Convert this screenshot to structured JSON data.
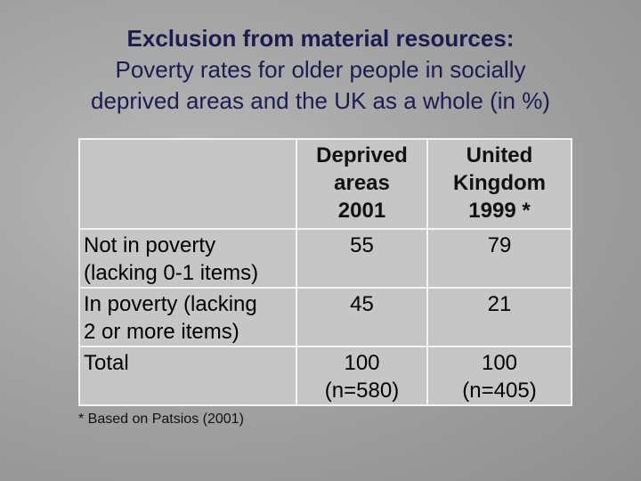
{
  "title": [
    "Exclusion from material resources:",
    "Poverty rates for older people in socially",
    "deprived areas and the UK as a whole (in %)"
  ],
  "table": {
    "header": [
      [
        "Deprived",
        "areas",
        "2001"
      ],
      [
        "United",
        "Kingdom",
        "1999 *"
      ]
    ],
    "rows": [
      [
        [
          "Not in poverty",
          "(lacking 0-1 items)"
        ],
        [
          55
        ],
        [
          79
        ]
      ],
      [
        [
          "In poverty (lacking",
          "2 or more items)"
        ],
        [
          45
        ],
        [
          21
        ]
      ],
      [
        [
          "Total"
        ],
        [
          100,
          "(n=580)"
        ],
        [
          100,
          "(n=405)"
        ]
      ]
    ]
  },
  "footnote": "* Based on Patsios (2001)"
}
